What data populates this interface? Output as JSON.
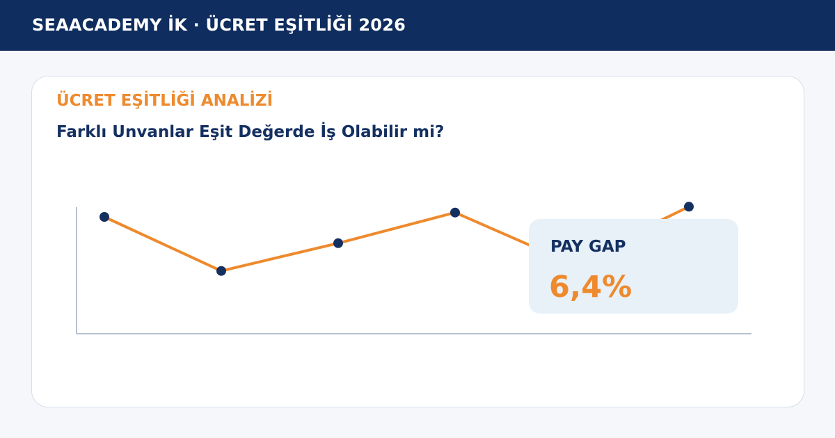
{
  "header": {
    "title": "SEAACADEMY İK · ÜCRET EŞİTLİĞİ 2026"
  },
  "card": {
    "eyebrow": "ÜCRET EŞİTLİĞİ ANALİZİ",
    "headline": "Farklı Unvanlar Eşit Değerde İş Olabilir mi?"
  },
  "stat": {
    "label": "PAY GAP",
    "value": "6,4%"
  },
  "colors": {
    "header_bg": "#0f2d5e",
    "accent": "#ee8a2d",
    "navy": "#143061",
    "stat_bg": "#e8f0f8",
    "axis": "#b6c2d2"
  },
  "chart_data": {
    "type": "line",
    "x": [
      1,
      2,
      3,
      4,
      5,
      6
    ],
    "series": [
      {
        "values": [
          0.8,
          0.43,
          0.62,
          0.83,
          0.48,
          0.87
        ]
      }
    ],
    "ylim": [
      0,
      1
    ],
    "grid": false,
    "title": "",
    "xlabel": "",
    "ylabel": ""
  }
}
